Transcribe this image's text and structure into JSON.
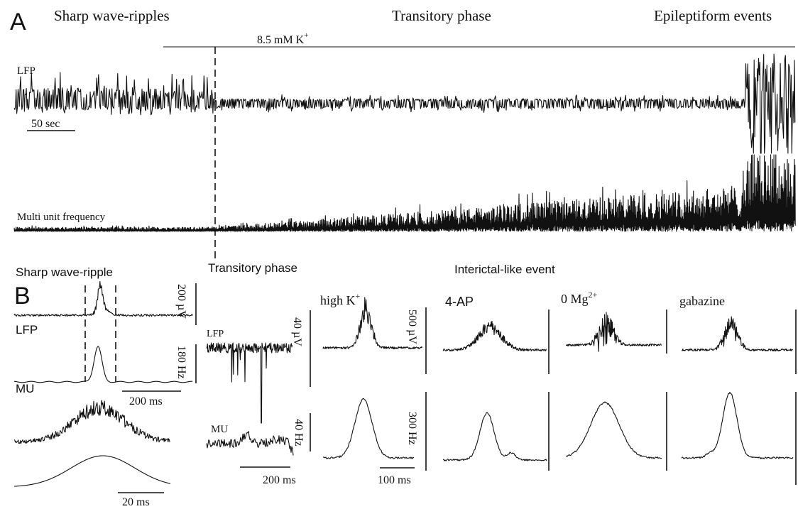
{
  "panel_a": {
    "letter": "A",
    "phase_swr": "Sharp wave-ripples",
    "phase_transitory": "Transitory phase",
    "phase_epileptiform": "Epileptiform events",
    "treatment": "8.5 mM K",
    "treatment_sup": "+",
    "lfp_label": "LFP",
    "mu_label": "Multi unit frequency",
    "scale_time": "50 sec"
  },
  "panel_b": {
    "letter": "B",
    "swr_title": "Sharp wave-ripple",
    "transitory_title": "Transitory phase",
    "interictal_title": "Interictal-like event",
    "lfp_label": "LFP",
    "mu_label": "MU",
    "swr_scale_amp": "200 µV",
    "swr_scale_freq": "180 Hz",
    "swr_scale_time": "200 ms",
    "swr_scale_time_zoom": "20 ms",
    "trans_lfp_label": "LFP",
    "trans_mu_label": "MU",
    "trans_scale_amp": "40 µV",
    "trans_scale_freq": "40 Hz",
    "trans_scale_time": "200 ms",
    "cond_highk": "high K",
    "cond_highk_sup": "+",
    "cond_4ap": "4-AP",
    "cond_0mg": "0 Mg",
    "cond_0mg_sup": "2+",
    "cond_gabazine": "gabazine",
    "ictal_scale_amp": "500 µV",
    "ictal_scale_freq": "300 Hz",
    "ictal_scale_time": "100 ms"
  }
}
